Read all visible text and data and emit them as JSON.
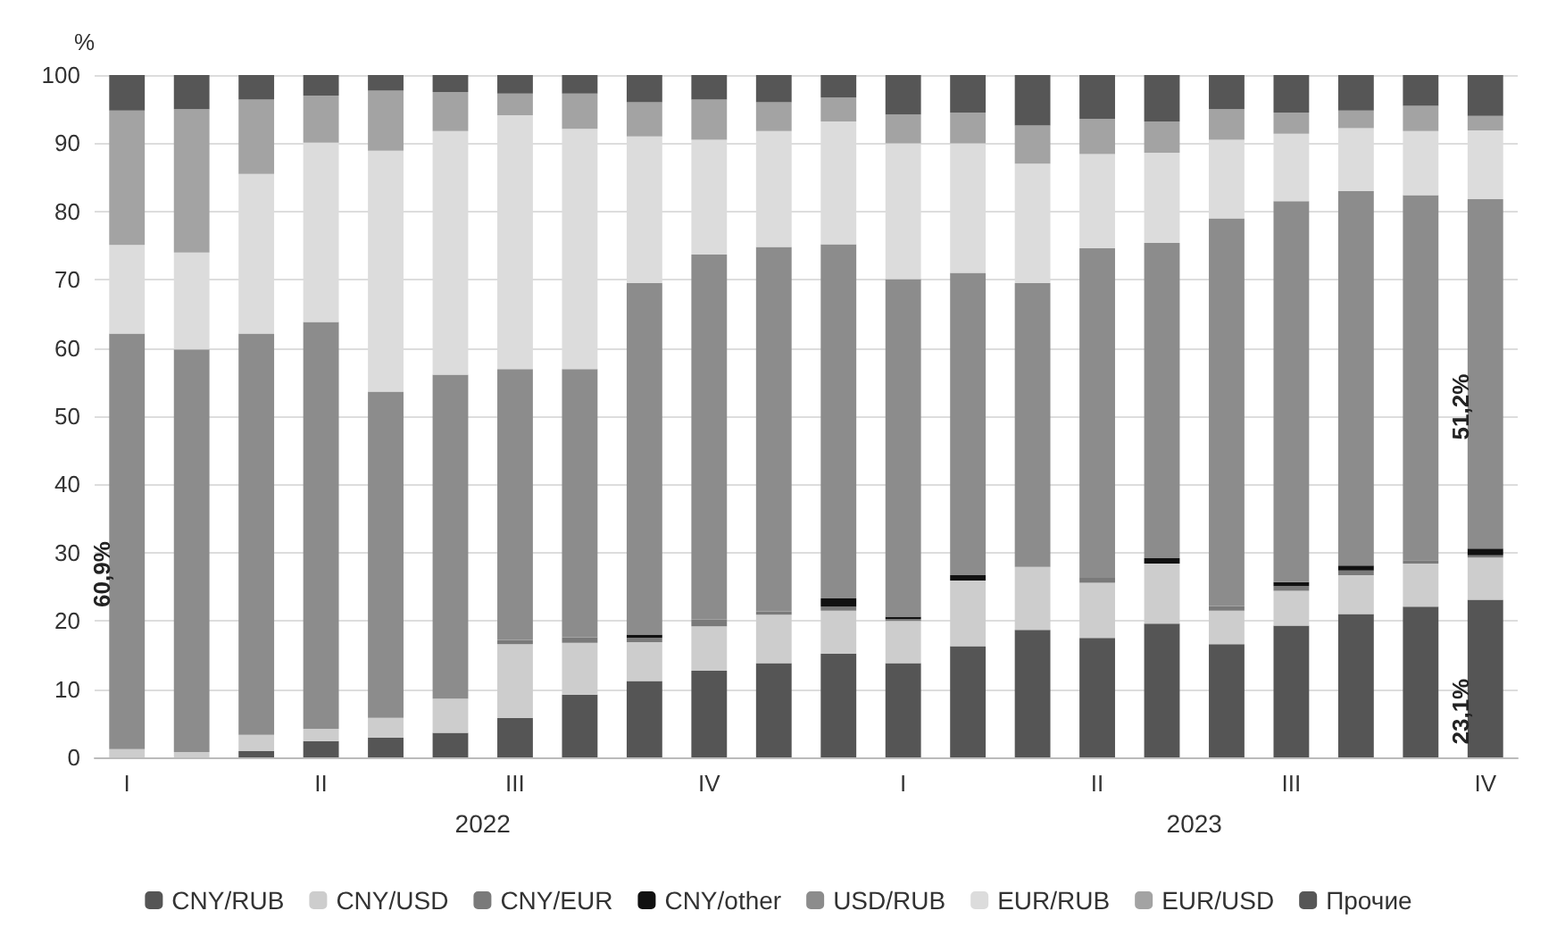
{
  "chart_data": {
    "type": "bar",
    "stacked": true,
    "ylabel": "%",
    "categories": [
      "I",
      null,
      null,
      "II",
      null,
      null,
      "III",
      null,
      null,
      "IV",
      null,
      null,
      "I",
      null,
      null,
      "II",
      null,
      null,
      "III",
      null,
      null,
      "IV"
    ],
    "annotations": [
      "2022",
      "2023"
    ],
    "series": [
      {
        "name": "CNY/RUB",
        "color": "#555555",
        "values": [
          0,
          0,
          0.9,
          2.4,
          2.9,
          3.6,
          5.8,
          9.2,
          11.2,
          12.7,
          13.8,
          15.2,
          13.8,
          16.3,
          18.7,
          17.5,
          19.6,
          16.6,
          19.3,
          21.0,
          22.1,
          23.1
        ],
        "value_labels": [
          null,
          null,
          null,
          null,
          null,
          null,
          null,
          null,
          null,
          null,
          null,
          null,
          null,
          null,
          null,
          null,
          null,
          null,
          null,
          null,
          null,
          "23,1%"
        ]
      },
      {
        "name": "CNY/USD",
        "color": "#cdcdcd",
        "values": [
          1.2,
          0.8,
          2.4,
          1.8,
          2.9,
          5.0,
          10.8,
          7.6,
          5.7,
          6.5,
          7.1,
          6.3,
          6.2,
          9.6,
          9.2,
          8.1,
          8.8,
          4.9,
          5.1,
          5.7,
          6.3,
          6.2
        ]
      },
      {
        "name": "CNY/EUR",
        "color": "#7a7a7a",
        "values": [
          0,
          0,
          0,
          0,
          0,
          0,
          0.6,
          0.8,
          0.6,
          1.0,
          0.5,
          0.6,
          0.3,
          0,
          0,
          0.7,
          0,
          0.7,
          0.7,
          0.7,
          0.5,
          0.3
        ]
      },
      {
        "name": "CNY/other",
        "color": "#111111",
        "values": [
          0,
          0,
          0,
          0,
          0,
          0,
          0,
          0,
          0.5,
          0,
          0,
          1.2,
          0.3,
          0.8,
          0,
          0,
          0.8,
          0,
          0.6,
          0.7,
          0,
          1.0
        ]
      },
      {
        "name": "USD/RUB",
        "color": "#8c8c8c",
        "values": [
          60.9,
          59.0,
          58.8,
          59.6,
          47.8,
          47.5,
          39.7,
          39.3,
          51.5,
          53.5,
          53.4,
          51.9,
          49.5,
          44.3,
          41.6,
          48.3,
          46.2,
          56.8,
          55.8,
          54.9,
          53.5,
          51.2
        ],
        "value_labels": [
          "60,9%",
          null,
          null,
          null,
          null,
          null,
          null,
          null,
          null,
          null,
          null,
          null,
          null,
          null,
          null,
          null,
          null,
          null,
          null,
          null,
          null,
          "51,2%"
        ]
      },
      {
        "name": "EUR/RUB",
        "color": "#dcdcdc",
        "values": [
          13.0,
          14.2,
          23.4,
          26.3,
          35.3,
          35.7,
          37.2,
          35.2,
          21.5,
          16.8,
          17.0,
          18.0,
          19.9,
          19.0,
          17.5,
          13.8,
          13.2,
          11.5,
          9.9,
          9.2,
          9.4,
          10.1
        ]
      },
      {
        "name": "EUR/USD",
        "color": "#a3a3a3",
        "values": [
          19.7,
          21.0,
          10.9,
          6.9,
          8.8,
          5.7,
          3.2,
          5.2,
          5.0,
          5.9,
          4.2,
          3.5,
          4.2,
          4.5,
          5.6,
          5.2,
          4.6,
          4.5,
          3.1,
          2.6,
          3.7,
          2.1
        ]
      },
      {
        "name": "Прочие",
        "color": "#565656",
        "values": [
          5.2,
          5.0,
          3.6,
          3.0,
          2.3,
          2.5,
          2.7,
          2.7,
          4.0,
          3.6,
          4.0,
          3.3,
          5.8,
          5.5,
          7.4,
          6.4,
          6.8,
          5.0,
          5.5,
          5.2,
          4.5,
          6.0
        ]
      }
    ],
    "ylim": [
      0,
      100
    ],
    "yticks": [
      0,
      10,
      20,
      30,
      40,
      50,
      60,
      70,
      80,
      90,
      100
    ],
    "grid": "y",
    "legend": "bottom"
  }
}
